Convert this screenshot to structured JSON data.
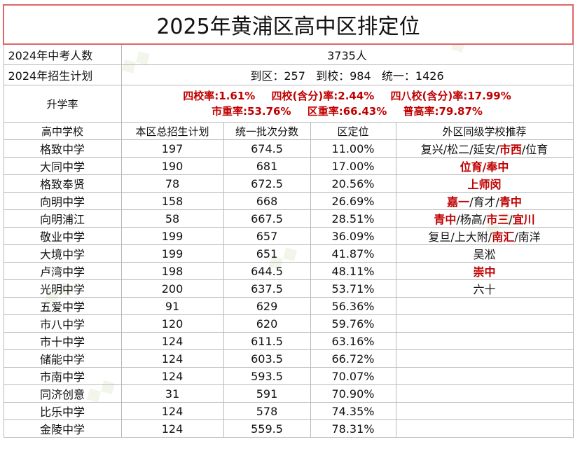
{
  "title": "2025年黄浦区高中区排定位",
  "exam_count": {
    "label": "2024年中考人数",
    "value": "3735人"
  },
  "plan": {
    "label": "2024年招生计划",
    "value": "到区：257   到校：984   统一：1426"
  },
  "rates": {
    "label": "升学率",
    "line1": [
      "四校率:1.61%",
      "四校(含分)率:2.44%",
      "四八校(含分)率:17.99%"
    ],
    "line2": [
      "市重率:53.76%",
      "区重率:66.43%",
      "普高率:79.87%"
    ]
  },
  "headers": [
    "高中学校",
    "本区总招生计划",
    "统一批次分数",
    "区定位",
    "外区同级学校推荐"
  ],
  "rows": [
    {
      "school": "格致中学",
      "plan": "197",
      "score": "674.5",
      "rank": "11.00%",
      "rec": [
        {
          "t": "复兴/松二/延安/"
        },
        {
          "t": "市西",
          "r": true
        },
        {
          "t": "/位育"
        }
      ]
    },
    {
      "school": "大同中学",
      "plan": "190",
      "score": "681",
      "rank": "17.00%",
      "rec": [
        {
          "t": "位育/奉中",
          "r": true
        }
      ]
    },
    {
      "school": "格致奉贤",
      "plan": "78",
      "score": "672.5",
      "rank": "20.56%",
      "rec": [
        {
          "t": "上师闵",
          "r": true
        }
      ]
    },
    {
      "school": "向明中学",
      "plan": "158",
      "score": "668",
      "rank": "26.69%",
      "rec": [
        {
          "t": "嘉一",
          "r": true
        },
        {
          "t": "/育才/"
        },
        {
          "t": "青中",
          "r": true
        }
      ]
    },
    {
      "school": "向明浦江",
      "plan": "58",
      "score": "667.5",
      "rank": "28.51%",
      "rec": [
        {
          "t": "青中",
          "r": true
        },
        {
          "t": "/杨高/"
        },
        {
          "t": "市三",
          "r": true
        },
        {
          "t": "/"
        },
        {
          "t": "宜川",
          "r": true
        }
      ]
    },
    {
      "school": "敬业中学",
      "plan": "199",
      "score": "657",
      "rank": "36.09%",
      "rec": [
        {
          "t": "复旦/上大附/"
        },
        {
          "t": "南汇",
          "r": true
        },
        {
          "t": "/南洋"
        }
      ]
    },
    {
      "school": "大境中学",
      "plan": "199",
      "score": "651",
      "rank": "41.87%",
      "rec": [
        {
          "t": "吴淞"
        }
      ]
    },
    {
      "school": "卢湾中学",
      "plan": "198",
      "score": "644.5",
      "rank": "48.11%",
      "rec": [
        {
          "t": "崇中",
          "r": true
        }
      ]
    },
    {
      "school": "光明中学",
      "plan": "200",
      "score": "637.5",
      "rank": "53.71%",
      "rec": [
        {
          "t": "六十"
        }
      ]
    },
    {
      "school": "五爱中学",
      "plan": "91",
      "score": "629",
      "rank": "56.36%",
      "rec": []
    },
    {
      "school": "市八中学",
      "plan": "120",
      "score": "620",
      "rank": "59.76%",
      "rec": []
    },
    {
      "school": "市十中学",
      "plan": "124",
      "score": "611.5",
      "rank": "63.16%",
      "rec": []
    },
    {
      "school": "储能中学",
      "plan": "124",
      "score": "603.5",
      "rank": "66.72%",
      "rec": []
    },
    {
      "school": "市南中学",
      "plan": "124",
      "score": "593.5",
      "rank": "70.07%",
      "rec": []
    },
    {
      "school": "同济创意",
      "plan": "31",
      "score": "591",
      "rank": "70.90%",
      "rec": []
    },
    {
      "school": "比乐中学",
      "plan": "124",
      "score": "578",
      "rank": "74.35%",
      "rec": []
    },
    {
      "school": "金陵中学",
      "plan": "124",
      "score": "559.5",
      "rank": "78.31%",
      "rec": []
    }
  ],
  "colors": {
    "accent_red": "#c00000",
    "title_border": "#e06666",
    "grid": "#b9b9b9"
  }
}
